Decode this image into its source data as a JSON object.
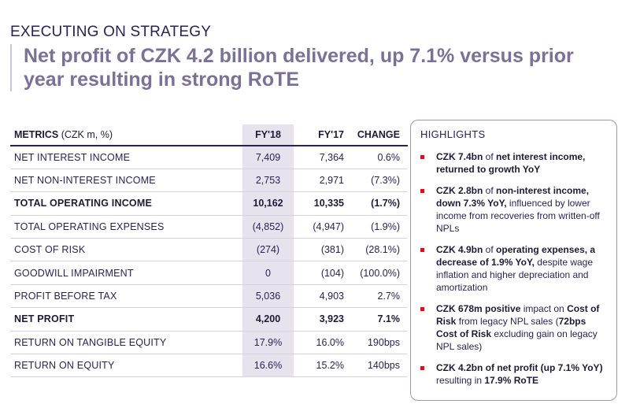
{
  "header": {
    "kicker": "EXECUTING ON STRATEGY",
    "title": "Net profit of CZK 4.2 billion delivered, up 7.1% versus prior year resulting in strong RoTE"
  },
  "table": {
    "col_metrics": "METRICS",
    "col_metrics_unit": " (CZK m, %)",
    "col_fy18": "FY'18",
    "col_fy17": "FY'17",
    "col_change": "CHANGE",
    "rows": [
      {
        "label": "NET INTEREST INCOME",
        "fy18": "7,409",
        "fy17": "7,364",
        "change": "0.6%"
      },
      {
        "label": "NET NON-INTEREST INCOME",
        "fy18": "2,753",
        "fy17": "2,971",
        "change": "(7.3%)"
      },
      {
        "label": "TOTAL OPERATING INCOME",
        "fy18": "10,162",
        "fy17": "10,335",
        "change": "(1.7%)"
      },
      {
        "label": "TOTAL OPERATING EXPENSES",
        "fy18": "(4,852)",
        "fy17": "(4,947)",
        "change": "(1.9%)"
      },
      {
        "label": "COST OF RISK",
        "fy18": "(274)",
        "fy17": "(381)",
        "change": "(28.1%)"
      },
      {
        "label": "GOODWILL IMPAIRMENT",
        "fy18": "0",
        "fy17": "(104)",
        "change": "(100.0%)"
      },
      {
        "label": "PROFIT BEFORE TAX",
        "fy18": "5,036",
        "fy17": "4,903",
        "change": "2.7%"
      },
      {
        "label": "NET PROFIT",
        "fy18": "4,200",
        "fy17": "3,923",
        "change": "7.1%"
      },
      {
        "label": "RETURN ON TANGIBLE EQUITY",
        "fy18": "17.9%",
        "fy17": "16.0%",
        "change": "190bps"
      },
      {
        "label": "RETURN ON EQUITY",
        "fy18": "16.6%",
        "fy17": "15.2%",
        "change": "140bps"
      }
    ]
  },
  "highlights": {
    "title": "HIGHLIGHTS",
    "items": [
      {
        "b1": "CZK 7.4bn",
        "t1": " of ",
        "b2": "net interest income, returned to growth YoY",
        "t2": "",
        "b3": "",
        "t3": ""
      },
      {
        "b1": "CZK 2.8bn",
        "t1": " of ",
        "b2": "non-interest income, down 7.3% YoY,",
        "t2": " influenced by lower income from recoveries from written-off NPLs",
        "b3": "",
        "t3": ""
      },
      {
        "b1": "CZK 4.9bn",
        "t1": " of ",
        "b2": "operating expenses, a decrease of 1.9% YoY,",
        "t2": " despite wage inflation and higher depreciation and amortization",
        "b3": "",
        "t3": ""
      },
      {
        "b1": "CZK 678m positive",
        "t1": " impact on ",
        "b2": "Cost of Risk",
        "t2": " from legacy NPL sales (",
        "b3": "72bps Cost of Risk",
        "t3": " excluding gain on legacy NPL sales)"
      },
      {
        "b1": "CZK 4.2bn of net profit (up 7.1% YoY)",
        "t1": " resulting in ",
        "b2": "17.9% RoTE",
        "t2": "",
        "b3": "",
        "t3": ""
      }
    ]
  }
}
